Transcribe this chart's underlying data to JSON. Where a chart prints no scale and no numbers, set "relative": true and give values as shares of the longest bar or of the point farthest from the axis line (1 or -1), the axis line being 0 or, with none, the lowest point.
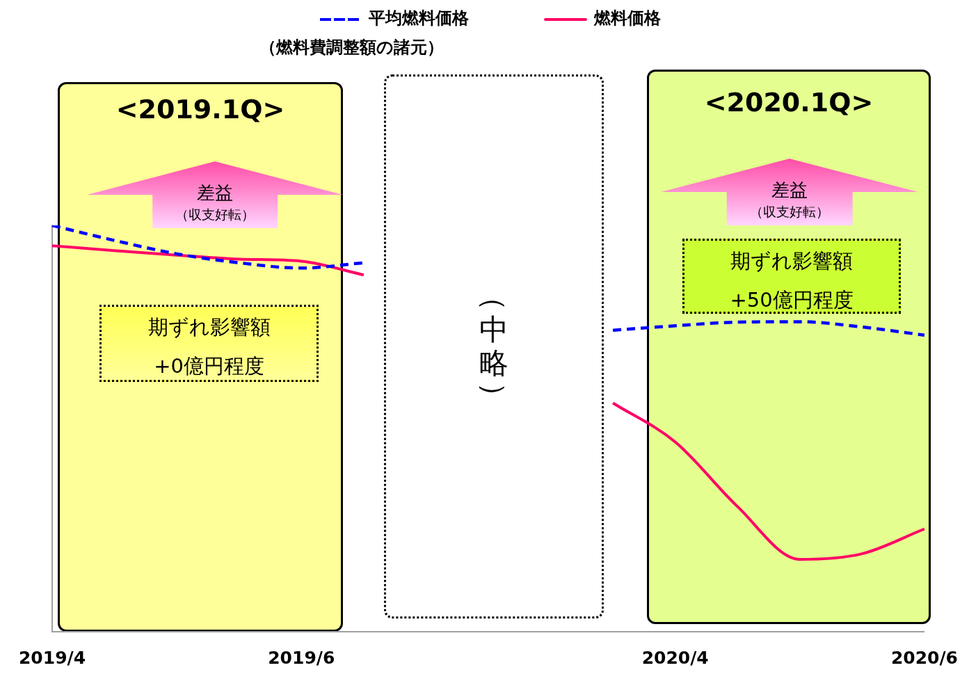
{
  "chart_data": {
    "type": "line",
    "relative": true,
    "categories": [
      "2019/4",
      null,
      null,
      null,
      "2019/6",
      null,
      null,
      null,
      null,
      null,
      "2020/4",
      null,
      null,
      null,
      "2020/6"
    ],
    "series": [
      {
        "name": "平均燃料価格",
        "color": "#0000ff",
        "line_style": "dashed",
        "values": [
          1,
          0.963,
          0.93,
          0.908,
          0.895,
          0.908,
          null,
          null,
          null,
          0.742,
          0.753,
          0.762,
          0.763,
          0.75,
          0.73
        ]
      },
      {
        "name": "燃料価格",
        "color": "#ff0066",
        "line_style": "solid",
        "values": [
          0.95,
          0.938,
          0.927,
          0.917,
          0.912,
          0.878,
          null,
          null,
          null,
          0.563,
          0.467,
          0.308,
          0.178,
          0.192,
          0.253
        ]
      }
    ],
    "legend": "top",
    "marker": "none",
    "grid": false,
    "annotations": [
      "（燃料費調整額の諸元）",
      "<2019.1Q>",
      "差益",
      "（収支好転）",
      "期ずれ影響額",
      "+0億円程度",
      "（中略）",
      "<2020.1Q>",
      "差益",
      "（収支好転）",
      "期ずれ影響額",
      "+50億円程度"
    ]
  }
}
